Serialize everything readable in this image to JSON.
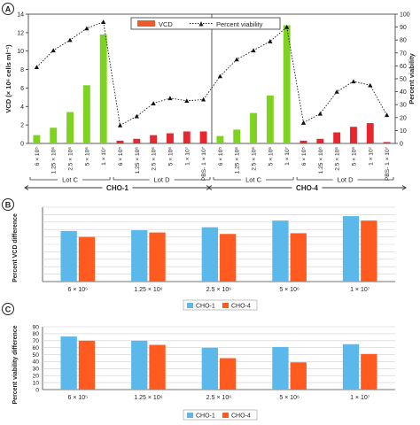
{
  "panel_labels": [
    "A",
    "B",
    "C"
  ],
  "chart_data": [
    {
      "panel": "A",
      "type": "bar",
      "title": "",
      "ylabel": "VCD (× 10⁶ cells ml⁻¹)",
      "y2label": "Percent viability",
      "ylim": [
        0,
        14
      ],
      "y2lim": [
        0,
        100
      ],
      "yticks": [
        0,
        2,
        4,
        6,
        8,
        10,
        12,
        14
      ],
      "y2ticks": [
        0,
        10,
        20,
        30,
        40,
        50,
        60,
        70,
        80,
        90,
        100
      ],
      "categories": [
        "6 × 10⁵",
        "1.25 × 10⁶",
        "2.5 × 10⁶",
        "5 × 10⁶",
        "1 × 10⁷",
        "6 × 10⁵",
        "1.25 × 10⁶",
        "2.5 × 10⁶",
        "5 × 10⁶",
        "1 × 10⁷",
        "PBS- 1 × 10⁷",
        "6 × 10⁵",
        "1.25 × 10⁶",
        "2.5 × 10⁶",
        "5 × 10⁶",
        "1 × 10⁷",
        "6 × 10⁵",
        "1.25 × 10⁶",
        "2.5 × 10⁶",
        "5 × 10⁶",
        "1 × 10⁷",
        "PBS- 1 × 10⁷"
      ],
      "legend": [
        "VCD",
        "Percent viability"
      ],
      "legend_position": "top",
      "series": [
        {
          "name": "VCD",
          "axis": "left",
          "values": [
            0.9,
            1.7,
            3.4,
            6.3,
            11.8,
            0.3,
            0.5,
            0.9,
            1.1,
            1.3,
            1.3,
            0.8,
            1.5,
            3.3,
            5.2,
            12.8,
            0.3,
            0.5,
            1.2,
            1.8,
            2.2,
            0.15
          ]
        },
        {
          "name": "Percent viability",
          "axis": "right",
          "values": [
            59,
            72,
            80,
            89,
            94,
            14,
            21,
            31,
            35,
            33,
            34,
            52,
            65,
            72,
            79,
            90,
            16,
            23,
            40,
            48,
            45,
            22
          ]
        }
      ],
      "bar_colors": [
        "#7ed321",
        "#7ed321",
        "#7ed321",
        "#7ed321",
        "#7ed321",
        "#e8262e",
        "#e8262e",
        "#e8262e",
        "#e8262e",
        "#e8262e",
        "#e8262e",
        "#7ed321",
        "#7ed321",
        "#7ed321",
        "#7ed321",
        "#7ed321",
        "#e8262e",
        "#e8262e",
        "#e8262e",
        "#e8262e",
        "#e8262e",
        "#e8262e"
      ],
      "legend_bar_color": "#ef5a29",
      "group_labels": [
        "Lot C",
        "Lot D",
        "Lot C",
        "Lot D"
      ],
      "cell_line_labels": [
        "CHO-1",
        "CHO-4"
      ]
    },
    {
      "panel": "B",
      "type": "bar",
      "title": "",
      "ylabel": "Percent VCD difference",
      "ylim": [
        0,
        100
      ],
      "categories": [
        "6 × 10⁵",
        "1.25 × 10⁶",
        "2.5 × 10⁶",
        "5 × 10⁶",
        "1 × 10⁷"
      ],
      "series": [
        {
          "name": "CHO-1",
          "values": [
            68,
            69,
            73,
            82,
            88
          ]
        },
        {
          "name": "CHO-4",
          "values": [
            60,
            66,
            64,
            65,
            82
          ]
        }
      ],
      "colors": [
        "#5bb8ea",
        "#ff5a1f"
      ],
      "legend_position": "bottom"
    },
    {
      "panel": "C",
      "type": "bar",
      "title": "",
      "ylabel": "Percent viability difference",
      "ylim": [
        0,
        90
      ],
      "yticks": [
        0,
        10,
        20,
        30,
        40,
        50,
        60,
        70,
        80,
        90
      ],
      "categories": [
        "6 × 10⁵",
        "1.25 × 10⁶",
        "2.5 × 10⁶",
        "5 × 10⁶",
        "1 × 10⁷"
      ],
      "series": [
        {
          "name": "CHO-1",
          "values": [
            76,
            70,
            60,
            61,
            65
          ]
        },
        {
          "name": "CHO-4",
          "values": [
            70,
            64,
            45,
            39,
            51
          ]
        }
      ],
      "colors": [
        "#5bb8ea",
        "#ff5a1f"
      ],
      "legend_position": "bottom"
    }
  ]
}
